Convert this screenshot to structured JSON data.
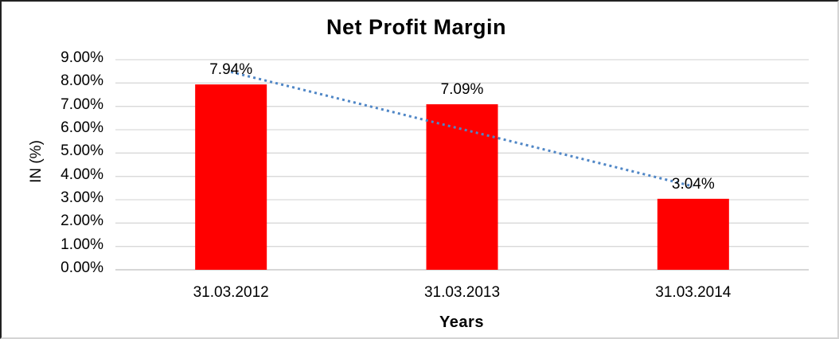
{
  "chart_data": {
    "type": "bar",
    "title": "Net Profit Margin",
    "xlabel": "Years",
    "ylabel": "IN (%)",
    "categories": [
      "31.03.2012",
      "31.03.2013",
      "31.03.2014"
    ],
    "values": [
      7.94,
      7.09,
      3.04
    ],
    "value_labels": [
      "7.94%",
      "7.09%",
      "3.04%"
    ],
    "y_ticks": [
      "0.00%",
      "1.00%",
      "2.00%",
      "3.00%",
      "4.00%",
      "5.00%",
      "6.00%",
      "7.00%",
      "8.00%",
      "9.00%"
    ],
    "ylim": [
      0,
      9
    ],
    "y_tick_step": 1,
    "grid": "horizontal",
    "legend": "none",
    "bar_color": "#FF0000",
    "gridline_color": "#D9D9D9",
    "axis_line_color": "#BFBFBF",
    "text_color": "#000000",
    "trendline": {
      "type": "linear",
      "style": "dotted",
      "color": "#4F86C6"
    }
  }
}
